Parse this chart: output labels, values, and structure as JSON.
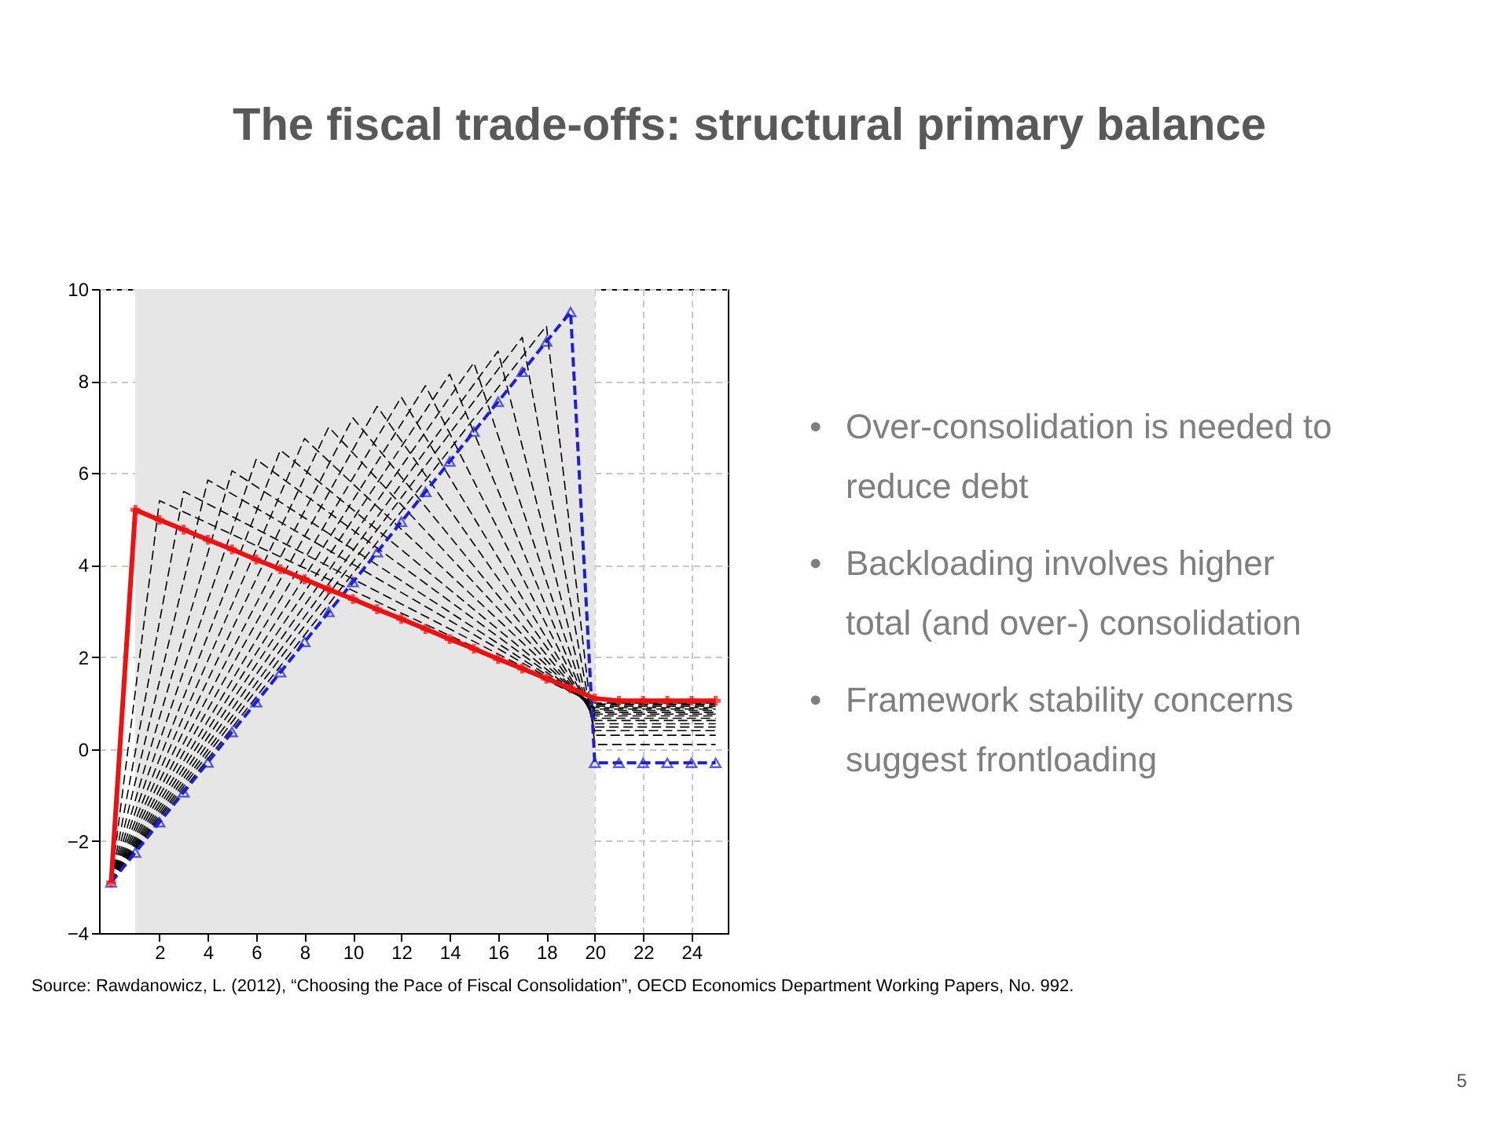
{
  "chart_data": {
    "type": "line",
    "title": "The fiscal trade-offs: structural primary balance",
    "annotations": [
      "• Over-consolidation is needed to reduce debt",
      "• Backloading involves higher total (and over-) consolidation",
      "• Framework stability concerns suggest frontloading",
      "Source: Rawdanowicz, L. (2012), “Choosing the Pace of Fiscal Consolidation”, OECD Economics Department Working Papers, No. 992.",
      "5"
    ],
    "xlim": [
      -0.5,
      25.5
    ],
    "xticks": [
      2,
      4,
      6,
      8,
      10,
      12,
      14,
      16,
      18,
      20,
      22,
      24
    ],
    "ylim": [
      -4,
      10
    ],
    "yticks": [
      -4,
      -2,
      0,
      2,
      4,
      6,
      8,
      10
    ],
    "grid": true,
    "bands": [
      {
        "axis": "x",
        "from": 1,
        "to": 20,
        "color": "#e6e6e6"
      }
    ],
    "series": [
      {
        "color": "#000000",
        "line_style": "dashed",
        "marker": "none",
        "x": [
          0,
          2,
          20,
          25
        ],
        "values": [
          -2.9,
          5.4,
          1.0,
          1.0
        ]
      },
      {
        "color": "#000000",
        "line_style": "dashed",
        "marker": "none",
        "x": [
          0,
          3,
          20,
          25
        ],
        "values": [
          -2.9,
          5.6,
          0.98,
          0.98
        ]
      },
      {
        "color": "#000000",
        "line_style": "dashed",
        "marker": "none",
        "x": [
          0,
          4,
          20,
          25
        ],
        "values": [
          -2.9,
          5.85,
          0.96,
          0.96
        ]
      },
      {
        "color": "#000000",
        "line_style": "dashed",
        "marker": "none",
        "x": [
          0,
          5,
          20,
          25
        ],
        "values": [
          -2.9,
          6.05,
          0.93,
          0.93
        ]
      },
      {
        "color": "#000000",
        "line_style": "dashed",
        "marker": "none",
        "x": [
          0,
          6,
          20,
          25
        ],
        "values": [
          -2.9,
          6.3,
          0.9,
          0.9
        ]
      },
      {
        "color": "#000000",
        "line_style": "dashed",
        "marker": "none",
        "x": [
          0,
          7,
          20,
          25
        ],
        "values": [
          -2.9,
          6.5,
          0.87,
          0.87
        ]
      },
      {
        "color": "#000000",
        "line_style": "dashed",
        "marker": "none",
        "x": [
          0,
          8,
          20,
          25
        ],
        "values": [
          -2.9,
          6.75,
          0.84,
          0.84
        ]
      },
      {
        "color": "#000000",
        "line_style": "dashed",
        "marker": "none",
        "x": [
          0,
          9,
          20,
          25
        ],
        "values": [
          -2.9,
          7.0,
          0.8,
          0.8
        ]
      },
      {
        "color": "#000000",
        "line_style": "dashed",
        "marker": "none",
        "x": [
          0,
          10,
          20,
          25
        ],
        "values": [
          -2.9,
          7.2,
          0.76,
          0.76
        ]
      },
      {
        "color": "#000000",
        "line_style": "dashed",
        "marker": "none",
        "x": [
          0,
          11,
          20,
          25
        ],
        "values": [
          -2.9,
          7.45,
          0.72,
          0.72
        ]
      },
      {
        "color": "#000000",
        "line_style": "dashed",
        "marker": "none",
        "x": [
          0,
          12,
          20,
          25
        ],
        "values": [
          -2.9,
          7.65,
          0.67,
          0.67
        ]
      },
      {
        "color": "#000000",
        "line_style": "dashed",
        "marker": "none",
        "x": [
          0,
          13,
          20,
          25
        ],
        "values": [
          -2.9,
          7.9,
          0.62,
          0.62
        ]
      },
      {
        "color": "#000000",
        "line_style": "dashed",
        "marker": "none",
        "x": [
          0,
          14,
          20,
          25
        ],
        "values": [
          -2.9,
          8.15,
          0.55,
          0.55
        ]
      },
      {
        "color": "#000000",
        "line_style": "dashed",
        "marker": "none",
        "x": [
          0,
          15,
          20,
          25
        ],
        "values": [
          -2.9,
          8.4,
          0.48,
          0.48
        ]
      },
      {
        "color": "#000000",
        "line_style": "dashed",
        "marker": "none",
        "x": [
          0,
          16,
          20,
          25
        ],
        "values": [
          -2.9,
          8.65,
          0.4,
          0.4
        ]
      },
      {
        "color": "#000000",
        "line_style": "dashed",
        "marker": "none",
        "x": [
          0,
          17,
          20,
          25
        ],
        "values": [
          -2.9,
          8.95,
          0.3,
          0.3
        ]
      },
      {
        "color": "#000000",
        "line_style": "dashed",
        "marker": "none",
        "x": [
          0,
          18,
          20,
          25
        ],
        "values": [
          -2.9,
          9.2,
          0.1,
          0.1
        ]
      },
      {
        "color": "#1f1fcc",
        "line_style": "dashed",
        "marker": "triangle",
        "x": [
          0,
          1,
          2,
          3,
          4,
          5,
          6,
          7,
          8,
          9,
          10,
          11,
          12,
          13,
          14,
          15,
          16,
          17,
          18,
          19,
          20,
          21,
          22,
          23,
          24,
          25
        ],
        "values": [
          -2.9,
          -2.25,
          -1.59,
          -0.94,
          -0.29,
          0.37,
          1.02,
          1.67,
          2.33,
          2.98,
          3.63,
          4.28,
          4.94,
          5.59,
          6.25,
          6.9,
          7.55,
          8.2,
          8.86,
          9.5,
          -0.3,
          -0.3,
          -0.3,
          -0.3,
          -0.3,
          -0.3
        ]
      },
      {
        "color": "#ee1111",
        "line_style": "solid",
        "marker": "cross",
        "x": [
          0,
          1,
          2,
          3,
          4,
          5,
          6,
          7,
          8,
          9,
          10,
          11,
          12,
          13,
          14,
          15,
          16,
          17,
          18,
          19,
          20,
          21,
          22,
          23,
          24,
          25
        ],
        "values": [
          -2.9,
          5.2,
          4.98,
          4.77,
          4.55,
          4.34,
          4.12,
          3.91,
          3.69,
          3.47,
          3.26,
          3.04,
          2.83,
          2.61,
          2.39,
          2.18,
          1.96,
          1.75,
          1.53,
          1.32,
          1.1,
          1.05,
          1.05,
          1.05,
          1.05,
          1.05
        ]
      }
    ]
  }
}
